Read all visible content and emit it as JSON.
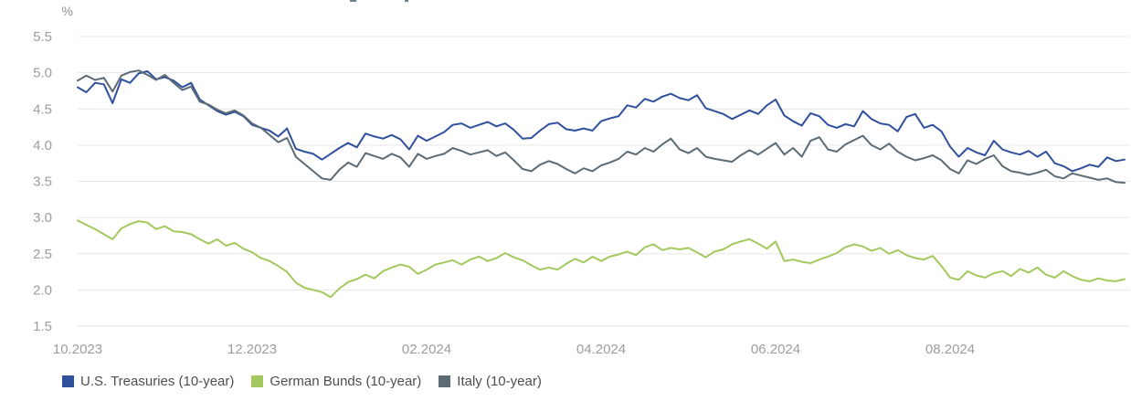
{
  "chart_data": {
    "type": "line",
    "title": "",
    "ylabel": "%",
    "xlabel": "",
    "ylim": [
      1.5,
      5.5
    ],
    "grid": "horizontal-only",
    "legend_position": "bottom-left",
    "ytick_labels": [
      "5.5",
      "5.0",
      "4.5",
      "4.0",
      "3.5",
      "3.0",
      "2.5",
      "2.0",
      "1.5"
    ],
    "ytick_values": [
      5.5,
      5.0,
      4.5,
      4.0,
      3.5,
      3.0,
      2.5,
      2.0,
      1.5
    ],
    "xtick_labels": [
      "10.2023",
      "12.2023",
      "02.2024",
      "04.2024",
      "06.2024",
      "08.2024"
    ],
    "xtick_month_offsets": [
      0,
      2,
      4,
      6,
      8,
      10
    ],
    "x_span_months": 12,
    "axis_text_color": "#9a9da1",
    "gridline_color": "#e7e7e8",
    "series": [
      {
        "name": "U.S. Treasuries (10-year)",
        "color": "#30509D",
        "values": [
          4.8,
          4.73,
          4.86,
          4.84,
          4.58,
          4.91,
          4.86,
          4.99,
          5.02,
          4.91,
          4.94,
          4.89,
          4.8,
          4.86,
          4.63,
          4.55,
          4.47,
          4.42,
          4.46,
          4.4,
          4.28,
          4.24,
          4.2,
          4.12,
          4.23,
          3.95,
          3.91,
          3.88,
          3.8,
          3.88,
          3.96,
          4.03,
          3.97,
          4.16,
          4.12,
          4.09,
          4.14,
          4.08,
          3.94,
          4.13,
          4.06,
          4.12,
          4.18,
          4.28,
          4.3,
          4.24,
          4.28,
          4.32,
          4.26,
          4.3,
          4.21,
          4.09,
          4.1,
          4.2,
          4.29,
          4.31,
          4.22,
          4.2,
          4.23,
          4.2,
          4.33,
          4.37,
          4.4,
          4.55,
          4.52,
          4.64,
          4.6,
          4.67,
          4.71,
          4.65,
          4.62,
          4.69,
          4.51,
          4.47,
          4.43,
          4.36,
          4.42,
          4.48,
          4.43,
          4.55,
          4.63,
          4.41,
          4.33,
          4.27,
          4.44,
          4.4,
          4.28,
          4.24,
          4.29,
          4.26,
          4.47,
          4.36,
          4.3,
          4.28,
          4.19,
          4.39,
          4.43,
          4.24,
          4.28,
          4.19,
          3.98,
          3.84,
          3.96,
          3.9,
          3.86,
          4.06,
          3.94,
          3.9,
          3.87,
          3.92,
          3.84,
          3.91,
          3.75,
          3.71,
          3.64,
          3.68,
          3.73,
          3.7,
          3.83,
          3.78,
          3.8
        ]
      },
      {
        "name": "German Bunds (10-year)",
        "color": "#A3C95E",
        "values": [
          2.96,
          2.9,
          2.84,
          2.77,
          2.7,
          2.85,
          2.91,
          2.95,
          2.93,
          2.84,
          2.88,
          2.81,
          2.8,
          2.77,
          2.7,
          2.64,
          2.7,
          2.61,
          2.65,
          2.57,
          2.52,
          2.44,
          2.4,
          2.33,
          2.25,
          2.1,
          2.03,
          2.0,
          1.97,
          1.9,
          2.02,
          2.11,
          2.15,
          2.21,
          2.16,
          2.26,
          2.31,
          2.35,
          2.32,
          2.22,
          2.28,
          2.35,
          2.38,
          2.41,
          2.35,
          2.42,
          2.46,
          2.4,
          2.44,
          2.51,
          2.45,
          2.41,
          2.34,
          2.28,
          2.31,
          2.28,
          2.36,
          2.43,
          2.38,
          2.46,
          2.4,
          2.46,
          2.49,
          2.53,
          2.48,
          2.59,
          2.63,
          2.55,
          2.58,
          2.56,
          2.58,
          2.52,
          2.45,
          2.53,
          2.56,
          2.63,
          2.67,
          2.7,
          2.64,
          2.57,
          2.67,
          2.4,
          2.42,
          2.39,
          2.37,
          2.42,
          2.46,
          2.51,
          2.59,
          2.63,
          2.6,
          2.54,
          2.58,
          2.5,
          2.55,
          2.48,
          2.44,
          2.42,
          2.47,
          2.33,
          2.17,
          2.14,
          2.26,
          2.2,
          2.17,
          2.23,
          2.26,
          2.19,
          2.29,
          2.24,
          2.31,
          2.21,
          2.17,
          2.26,
          2.19,
          2.14,
          2.12,
          2.16,
          2.13,
          2.12,
          2.15
        ]
      },
      {
        "name": "Italy (10-year)",
        "color": "#5C6B74",
        "values": [
          4.89,
          4.96,
          4.9,
          4.93,
          4.74,
          4.96,
          5.01,
          5.03,
          4.97,
          4.9,
          4.97,
          4.86,
          4.76,
          4.81,
          4.6,
          4.56,
          4.49,
          4.44,
          4.48,
          4.41,
          4.3,
          4.24,
          4.14,
          4.04,
          4.1,
          3.84,
          3.74,
          3.64,
          3.54,
          3.52,
          3.66,
          3.76,
          3.7,
          3.89,
          3.85,
          3.81,
          3.88,
          3.83,
          3.7,
          3.88,
          3.81,
          3.85,
          3.88,
          3.96,
          3.92,
          3.87,
          3.9,
          3.93,
          3.85,
          3.9,
          3.79,
          3.67,
          3.64,
          3.73,
          3.78,
          3.74,
          3.67,
          3.61,
          3.68,
          3.64,
          3.72,
          3.76,
          3.81,
          3.91,
          3.87,
          3.96,
          3.91,
          4.01,
          4.09,
          3.94,
          3.89,
          3.96,
          3.84,
          3.81,
          3.79,
          3.77,
          3.86,
          3.93,
          3.87,
          3.95,
          4.03,
          3.87,
          3.96,
          3.84,
          4.06,
          4.11,
          3.94,
          3.91,
          4.01,
          4.07,
          4.13,
          4.0,
          3.94,
          4.02,
          3.91,
          3.84,
          3.79,
          3.82,
          3.86,
          3.79,
          3.67,
          3.61,
          3.79,
          3.74,
          3.81,
          3.86,
          3.71,
          3.64,
          3.62,
          3.59,
          3.62,
          3.66,
          3.57,
          3.54,
          3.61,
          3.58,
          3.55,
          3.52,
          3.54,
          3.49,
          3.48
        ]
      }
    ]
  }
}
